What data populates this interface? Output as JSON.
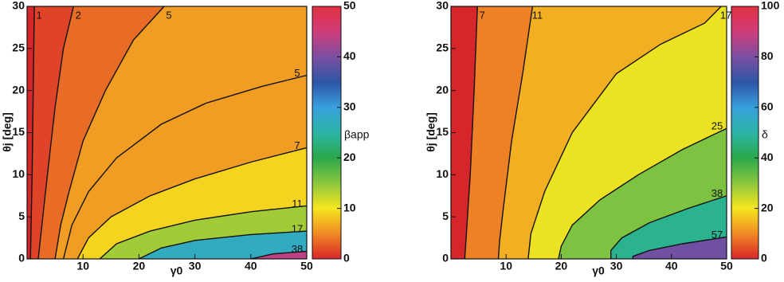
{
  "chart_data": [
    {
      "type": "contour",
      "xlabel": "γ0",
      "ylabel": "θj [deg]",
      "zlabel": "βapp",
      "xlim": [
        0,
        50
      ],
      "ylim": [
        0,
        30
      ],
      "xticks": [
        10,
        20,
        30,
        40,
        50
      ],
      "yticks": [
        0,
        5,
        10,
        15,
        20,
        25,
        30
      ],
      "zlim": [
        0,
        50
      ],
      "zticks": [
        0,
        10,
        20,
        30,
        40,
        50
      ],
      "colormap": [
        "#d7262a",
        "#f08a24",
        "#f6e61e",
        "#8cc63f",
        "#2aa84a",
        "#2bb5a6",
        "#39a0dc",
        "#2d55a5",
        "#7c4fa0",
        "#cf3d7c",
        "#e03040"
      ],
      "contour_color": "#111111",
      "contours": [
        {
          "level": 1,
          "x": [
            1.3,
            1.1,
            0.9,
            0.6
          ],
          "y": [
            30,
            20,
            10,
            0
          ]
        },
        {
          "level": 2,
          "x": [
            8.3,
            6.5,
            5,
            3.8,
            2.8,
            2
          ],
          "y": [
            30,
            25,
            18,
            11,
            5,
            0
          ]
        },
        {
          "level": 5,
          "x": [
            24.5,
            19,
            14,
            10,
            7.5,
            6,
            5
          ],
          "y": [
            30,
            26,
            20,
            14,
            8,
            4,
            0
          ]
        },
        {
          "level": 5,
          "x": [
            50,
            42,
            32,
            24,
            16,
            11,
            8,
            6.5
          ],
          "y": [
            21.8,
            20.5,
            18.5,
            16,
            12,
            8,
            4,
            0
          ]
        },
        {
          "level": 7,
          "x": [
            50,
            40,
            30,
            22,
            15,
            11,
            9
          ],
          "y": [
            13.2,
            11.5,
            9.5,
            7.5,
            5,
            2.5,
            0
          ]
        },
        {
          "level": 11,
          "x": [
            50,
            40,
            30,
            22,
            16,
            13
          ],
          "y": [
            6.3,
            5.6,
            4.6,
            3.3,
            1.8,
            0
          ]
        },
        {
          "level": 17,
          "x": [
            50,
            40,
            30,
            24,
            20
          ],
          "y": [
            3.3,
            2.9,
            2.2,
            1.3,
            0
          ]
        },
        {
          "level": 38,
          "x": [
            50,
            44,
            40
          ],
          "y": [
            0.9,
            0.6,
            0
          ]
        }
      ]
    },
    {
      "type": "contour",
      "xlabel": "γ0",
      "ylabel": "θj [deg]",
      "zlabel": "δ",
      "xlim": [
        0,
        50
      ],
      "ylim": [
        0,
        30
      ],
      "xticks": [
        10,
        20,
        30,
        40,
        50
      ],
      "yticks": [
        0,
        5,
        10,
        15,
        20,
        25,
        30
      ],
      "zlim": [
        0,
        100
      ],
      "zticks": [
        0,
        20,
        40,
        60,
        80,
        100
      ],
      "colormap": [
        "#d7262a",
        "#f08a24",
        "#f6e61e",
        "#8cc63f",
        "#2aa84a",
        "#2bb5a6",
        "#39a0dc",
        "#2d55a5",
        "#7c4fa0",
        "#cf3d7c",
        "#e03040"
      ],
      "contour_color": "#111111",
      "contours": [
        {
          "level": 7,
          "x": [
            4.8,
            4.2,
            3.5,
            2.8,
            2.5
          ],
          "y": [
            30,
            20,
            10,
            3,
            0
          ]
        },
        {
          "level": 11,
          "x": [
            14.8,
            13,
            11,
            9.5,
            8.8,
            8.6
          ],
          "y": [
            30,
            22,
            14,
            6,
            2,
            0
          ]
        },
        {
          "level": 17,
          "x": [
            49,
            46,
            38,
            30,
            22,
            17,
            14.5,
            14
          ],
          "y": [
            30,
            28,
            25.5,
            22,
            15,
            8,
            3,
            0
          ]
        },
        {
          "level": 25,
          "x": [
            50,
            42,
            34,
            27,
            22,
            20,
            19.5
          ],
          "y": [
            15.5,
            13,
            10,
            7,
            4,
            1.5,
            0
          ]
        },
        {
          "level": 38,
          "x": [
            50,
            43,
            36,
            31,
            29,
            29
          ],
          "y": [
            7.5,
            6,
            4.3,
            2.5,
            1,
            0
          ]
        },
        {
          "level": 57,
          "x": [
            50,
            42,
            36,
            33,
            33
          ],
          "y": [
            2.6,
            1.8,
            1,
            0.3,
            0
          ]
        }
      ]
    }
  ]
}
